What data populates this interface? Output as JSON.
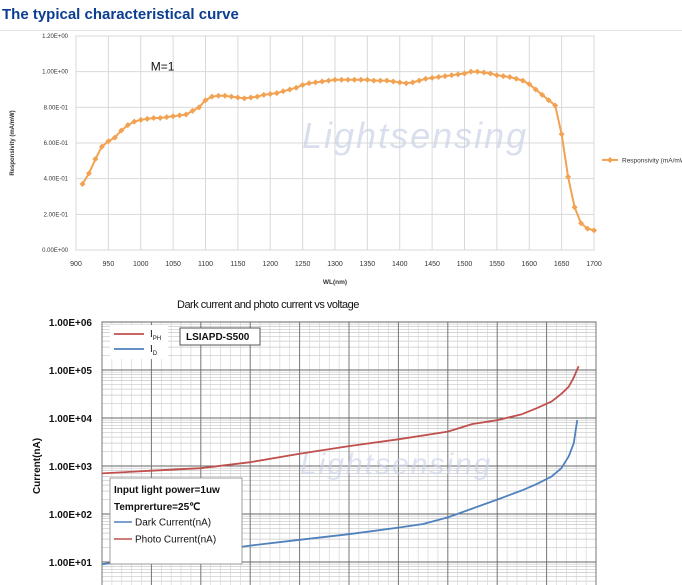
{
  "section_title": "The typical characteristical curve",
  "colors": {
    "title": "#0b3d91",
    "orange": "#f2a253",
    "red": "#c0504d",
    "blue": "#4f81bd",
    "watermark": "#c9d2e6"
  },
  "chart_data": [
    {
      "type": "line",
      "title": "",
      "xlabel": "WL(nm)",
      "ylabel": "Responsivity (mA/mW)",
      "annotation": "M=1",
      "watermark": "Lightsensing",
      "legend": {
        "placement": "right",
        "entries": [
          "Responsivity (mA/mW)"
        ]
      },
      "xlim": [
        900,
        1700
      ],
      "ylim": [
        0,
        1.2
      ],
      "x_ticks": [
        "900",
        "950",
        "1000",
        "1050",
        "1100",
        "1150",
        "1200",
        "1250",
        "1300",
        "1350",
        "1400",
        "1450",
        "1500",
        "1550",
        "1600",
        "1650",
        "1700"
      ],
      "y_ticks": [
        "0.00E+00",
        "2.00E-01",
        "4.00E-01",
        "6.00E-01",
        "8.00E-01",
        "1.00E+00",
        "1.20E+00"
      ],
      "series": [
        {
          "name": "Responsivity (mA/mW)",
          "x": [
            910,
            920,
            930,
            940,
            950,
            960,
            970,
            980,
            990,
            1000,
            1010,
            1020,
            1030,
            1040,
            1050,
            1060,
            1070,
            1080,
            1090,
            1100,
            1110,
            1120,
            1130,
            1140,
            1150,
            1160,
            1170,
            1180,
            1190,
            1200,
            1210,
            1220,
            1230,
            1240,
            1250,
            1260,
            1270,
            1280,
            1290,
            1300,
            1310,
            1320,
            1330,
            1340,
            1350,
            1360,
            1370,
            1380,
            1390,
            1400,
            1410,
            1420,
            1430,
            1440,
            1450,
            1460,
            1470,
            1480,
            1490,
            1500,
            1510,
            1520,
            1530,
            1540,
            1550,
            1560,
            1570,
            1580,
            1590,
            1600,
            1610,
            1620,
            1630,
            1640,
            1650,
            1660,
            1670,
            1680,
            1690,
            1700
          ],
          "values": [
            0.37,
            0.43,
            0.51,
            0.58,
            0.61,
            0.63,
            0.67,
            0.7,
            0.72,
            0.73,
            0.735,
            0.74,
            0.74,
            0.745,
            0.75,
            0.755,
            0.76,
            0.78,
            0.8,
            0.84,
            0.86,
            0.865,
            0.865,
            0.86,
            0.855,
            0.85,
            0.855,
            0.86,
            0.87,
            0.875,
            0.88,
            0.89,
            0.9,
            0.91,
            0.925,
            0.935,
            0.94,
            0.945,
            0.95,
            0.955,
            0.955,
            0.955,
            0.955,
            0.955,
            0.955,
            0.95,
            0.95,
            0.95,
            0.945,
            0.94,
            0.935,
            0.94,
            0.95,
            0.96,
            0.965,
            0.97,
            0.975,
            0.98,
            0.985,
            0.99,
            1.0,
            1.0,
            0.995,
            0.99,
            0.98,
            0.975,
            0.97,
            0.96,
            0.95,
            0.93,
            0.9,
            0.87,
            0.84,
            0.81,
            0.65,
            0.41,
            0.24,
            0.15,
            0.12,
            0.11
          ]
        }
      ]
    },
    {
      "type": "line",
      "title": "Dark current and photo current vs voltage",
      "xlabel": "",
      "ylabel": "Current(nA)",
      "yscale": "log",
      "ylim": [
        10,
        1000000
      ],
      "xlim": [
        0,
        100
      ],
      "y_ticks": [
        "1.00E+06",
        "1.00E+05",
        "1.00E+04",
        "1.00E+03",
        "1.00E+02",
        "1.00E+01"
      ],
      "model_label": "LSIAPD-S500",
      "legend_top": {
        "placement": "top-left",
        "entries": [
          {
            "main": "I",
            "sub": "PH"
          },
          {
            "main": "I",
            "sub": "D"
          }
        ]
      },
      "notes": [
        "Input light power=1uw",
        "Temprerture=25℃"
      ],
      "legend_bottom": {
        "placement": "bottom-left",
        "entries": [
          "Dark Current(nA)",
          "Photo Current(nA)"
        ]
      },
      "watermark": "Lightsensing",
      "series": [
        {
          "name": "Photo Current(nA)",
          "x": [
            0,
            10,
            20,
            30,
            40,
            50,
            60,
            70,
            75,
            80,
            85,
            88,
            91,
            93,
            94.5,
            95.5,
            96.5
          ],
          "values": [
            700,
            800,
            900,
            1200,
            1800,
            2600,
            3600,
            5200,
            7500,
            9000,
            12000,
            16000,
            22000,
            32000,
            45000,
            70000,
            120000
          ]
        },
        {
          "name": "Dark Current(nA)",
          "x": [
            0,
            10,
            20,
            30,
            40,
            50,
            60,
            65,
            70,
            75,
            80,
            85,
            88,
            91,
            93,
            94.5,
            95.5,
            96.2
          ],
          "values": [
            9,
            12,
            16,
            22,
            29,
            38,
            52,
            62,
            85,
            130,
            200,
            310,
            420,
            600,
            900,
            1600,
            3000,
            9000
          ]
        }
      ]
    }
  ]
}
